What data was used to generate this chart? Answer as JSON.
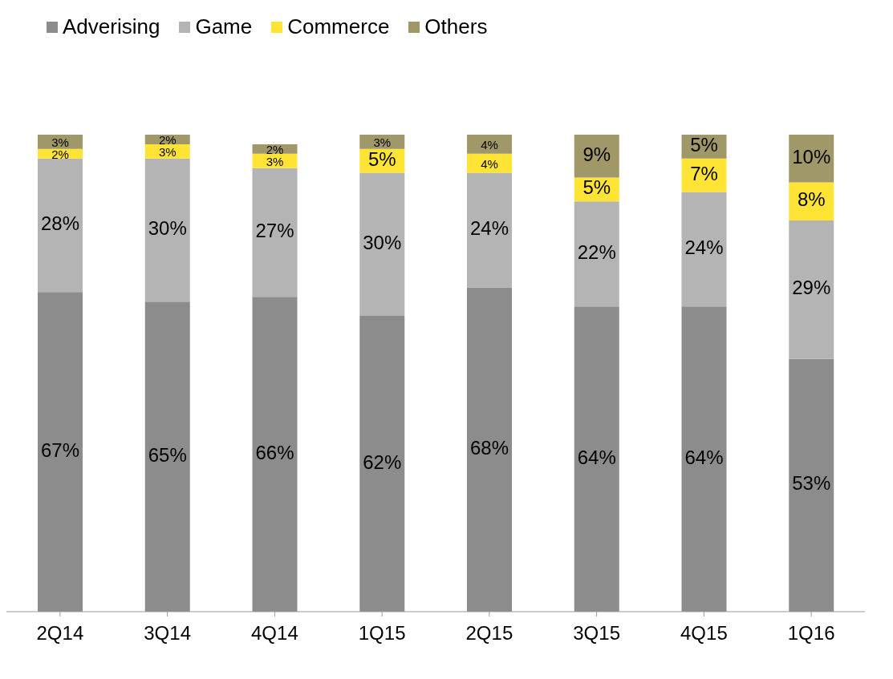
{
  "chart_data": {
    "type": "bar",
    "stacked": true,
    "legend": "top left",
    "categories": [
      "2Q14",
      "3Q14",
      "4Q14",
      "1Q15",
      "2Q15",
      "3Q15",
      "4Q15",
      "1Q16"
    ],
    "series": [
      {
        "name": "Adverising",
        "color": "#8c8c8c",
        "values": [
          67,
          65,
          66,
          62,
          68,
          64,
          64,
          53
        ],
        "value_labels": [
          "67%",
          "65%",
          "66%",
          "62%",
          "68%",
          "64%",
          "64%",
          "53%"
        ]
      },
      {
        "name": "Game",
        "color": "#b4b4b4",
        "values": [
          28,
          30,
          27,
          30,
          24,
          22,
          24,
          29
        ],
        "value_labels": [
          "28%",
          "30%",
          "27%",
          "30%",
          "24%",
          "22%",
          "24%",
          "29%"
        ]
      },
      {
        "name": "Commerce",
        "color": "#ffe335",
        "values": [
          2,
          3,
          3,
          5,
          4,
          5,
          7,
          8
        ],
        "value_labels": [
          "2%",
          "3%",
          "3%",
          "5%",
          "4%",
          "5%",
          "7%",
          "8%"
        ]
      },
      {
        "name": "Others",
        "color": "#a09868",
        "values": [
          3,
          2,
          2,
          3,
          4,
          9,
          5,
          10
        ],
        "value_labels": [
          "3%",
          "2%",
          "2%",
          "3%",
          "4%",
          "9%",
          "5%",
          "10%"
        ]
      }
    ]
  }
}
